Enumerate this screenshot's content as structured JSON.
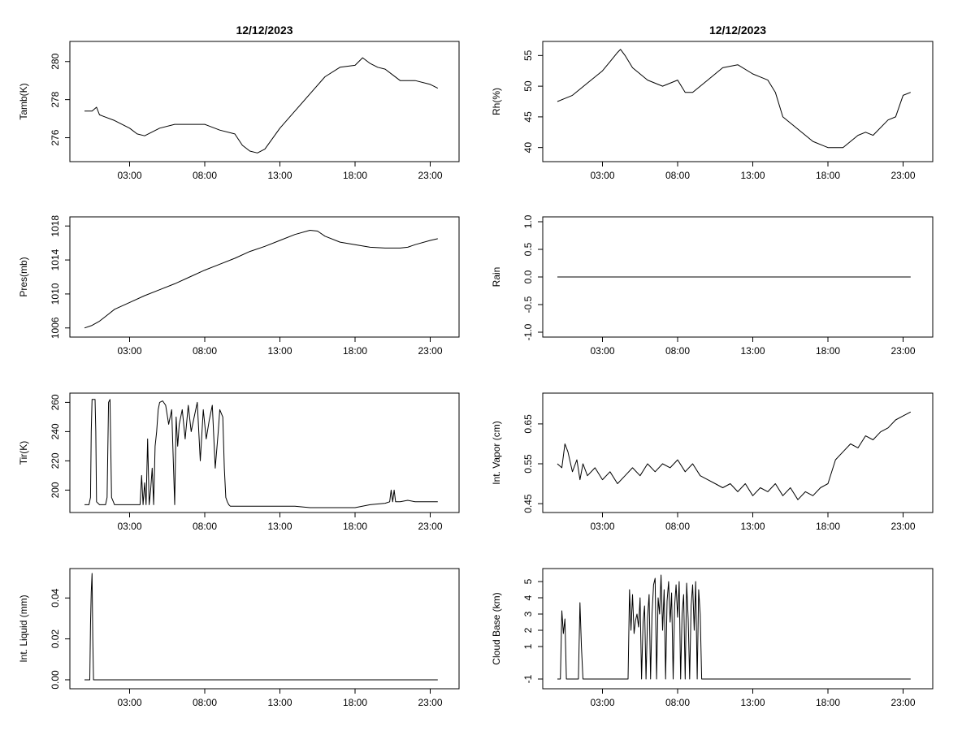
{
  "chart_data": [
    {
      "type": "line",
      "title": "12/12/2023",
      "xlabel": "",
      "ylabel": "Tamb(K)",
      "xticks": [
        "03:00",
        "08:00",
        "13:00",
        "18:00",
        "23:00"
      ],
      "xlim": [
        0,
        24
      ],
      "ylim": [
        275.0,
        280.8
      ],
      "yticks": [
        "276",
        "278",
        "280"
      ],
      "series": [
        {
          "name": "Tamb",
          "x": [
            0.0,
            0.5,
            0.8,
            1.0,
            2.0,
            3.0,
            3.5,
            4.0,
            5.0,
            6.0,
            7.0,
            8.0,
            9.0,
            10.0,
            10.5,
            11.0,
            11.5,
            12.0,
            13.0,
            14.0,
            15.0,
            16.0,
            17.0,
            18.0,
            18.5,
            19.0,
            19.5,
            20.0,
            20.5,
            21.0,
            22.0,
            23.0,
            23.5
          ],
          "y": [
            277.4,
            277.4,
            277.6,
            277.2,
            276.9,
            276.5,
            276.2,
            276.1,
            276.5,
            276.7,
            276.7,
            276.7,
            276.4,
            276.2,
            275.6,
            275.3,
            275.2,
            275.4,
            276.5,
            277.4,
            278.3,
            279.2,
            279.7,
            279.8,
            280.2,
            279.9,
            279.7,
            279.6,
            279.3,
            279.0,
            279.0,
            278.8,
            278.6
          ]
        }
      ]
    },
    {
      "type": "line",
      "title": "12/12/2023",
      "xlabel": "",
      "ylabel": "Rh(%)",
      "xticks": [
        "03:00",
        "08:00",
        "13:00",
        "18:00",
        "23:00"
      ],
      "xlim": [
        0,
        24
      ],
      "ylim": [
        38.5,
        56.5
      ],
      "yticks": [
        "40",
        "45",
        "50",
        "55"
      ],
      "series": [
        {
          "name": "Rh",
          "x": [
            0.0,
            0.5,
            1.0,
            2.0,
            3.0,
            3.5,
            4.0,
            4.2,
            4.5,
            5.0,
            6.0,
            7.0,
            8.0,
            8.5,
            9.0,
            10.0,
            11.0,
            12.0,
            13.0,
            13.5,
            14.0,
            14.5,
            15.0,
            16.0,
            17.0,
            18.0,
            19.0,
            20.0,
            20.5,
            21.0,
            22.0,
            22.5,
            23.0,
            23.5
          ],
          "y": [
            47.5,
            48.0,
            48.5,
            50.5,
            52.5,
            54.0,
            55.5,
            56.0,
            55.0,
            53.0,
            51.0,
            50.0,
            51.0,
            49.0,
            49.0,
            51.0,
            53.0,
            53.5,
            52.0,
            51.5,
            51.0,
            49.0,
            45.0,
            43.0,
            41.0,
            40.0,
            40.0,
            42.0,
            42.5,
            42.0,
            44.5,
            45.0,
            48.5,
            49.0
          ]
        }
      ]
    },
    {
      "type": "line",
      "title": "",
      "xlabel": "",
      "ylabel": "Pres(mb)",
      "xticks": [
        "03:00",
        "08:00",
        "13:00",
        "18:00",
        "23:00"
      ],
      "xlim": [
        0,
        24
      ],
      "ylim": [
        1005.5,
        1018.5
      ],
      "yticks": [
        "1006",
        "1010",
        "1014",
        "1018"
      ],
      "series": [
        {
          "name": "Pres",
          "x": [
            0.0,
            0.5,
            1.0,
            1.5,
            2.0,
            3.0,
            4.0,
            5.0,
            6.0,
            7.0,
            8.0,
            9.0,
            10.0,
            11.0,
            12.0,
            13.0,
            14.0,
            15.0,
            15.5,
            16.0,
            17.0,
            18.0,
            19.0,
            20.0,
            21.0,
            21.5,
            22.0,
            23.0,
            23.5
          ],
          "y": [
            1006.0,
            1006.3,
            1006.8,
            1007.5,
            1008.2,
            1009.0,
            1009.8,
            1010.5,
            1011.2,
            1012.0,
            1012.8,
            1013.5,
            1014.2,
            1015.0,
            1015.6,
            1016.3,
            1017.0,
            1017.5,
            1017.4,
            1016.8,
            1016.1,
            1015.8,
            1015.5,
            1015.4,
            1015.4,
            1015.5,
            1015.8,
            1016.3,
            1016.5
          ]
        }
      ]
    },
    {
      "type": "line",
      "title": "",
      "xlabel": "",
      "ylabel": "Rain",
      "xticks": [
        "03:00",
        "08:00",
        "13:00",
        "18:00",
        "23:00"
      ],
      "xlim": [
        0,
        24
      ],
      "ylim": [
        -1.0,
        1.0
      ],
      "yticks": [
        "-1.0",
        "-0.5",
        "0.0",
        "0.5",
        "1.0"
      ],
      "series": [
        {
          "name": "Rain",
          "x": [
            0.0,
            23.5
          ],
          "y": [
            0,
            0
          ]
        }
      ]
    },
    {
      "type": "line",
      "title": "",
      "xlabel": "",
      "ylabel": "Tir(K)",
      "xticks": [
        "03:00",
        "08:00",
        "13:00",
        "18:00",
        "23:00"
      ],
      "xlim": [
        0,
        24
      ],
      "ylim": [
        188,
        263
      ],
      "yticks": [
        "200",
        "220",
        "240",
        "260"
      ],
      "series": [
        {
          "name": "Tir",
          "x": [
            0.0,
            0.3,
            0.4,
            0.45,
            0.5,
            0.7,
            0.75,
            0.8,
            1.0,
            1.2,
            1.4,
            1.5,
            1.6,
            1.7,
            1.8,
            2.0,
            2.5,
            3.0,
            3.5,
            3.7,
            3.8,
            3.9,
            4.0,
            4.1,
            4.2,
            4.3,
            4.4,
            4.5,
            4.6,
            4.7,
            4.8,
            4.9,
            5.0,
            5.2,
            5.4,
            5.6,
            5.8,
            6.0,
            6.1,
            6.2,
            6.3,
            6.5,
            6.7,
            6.9,
            7.1,
            7.3,
            7.5,
            7.7,
            7.9,
            8.1,
            8.3,
            8.5,
            8.7,
            8.9,
            9.0,
            9.2,
            9.3,
            9.4,
            9.5,
            9.6,
            9.7,
            10.0,
            11.0,
            12.0,
            13.0,
            14.0,
            15.0,
            16.0,
            17.0,
            18.0,
            19.0,
            20.0,
            20.3,
            20.4,
            20.5,
            20.6,
            20.7,
            21.0,
            21.5,
            22.0,
            23.0,
            23.5
          ],
          "y": [
            190,
            190,
            195,
            240,
            262,
            262,
            240,
            192,
            190,
            190,
            190,
            195,
            260,
            262,
            195,
            190,
            190,
            190,
            190,
            190,
            210,
            190,
            205,
            190,
            235,
            190,
            200,
            215,
            190,
            230,
            240,
            255,
            260,
            261,
            258,
            245,
            255,
            190,
            250,
            230,
            245,
            255,
            235,
            258,
            240,
            250,
            260,
            220,
            255,
            235,
            248,
            258,
            215,
            240,
            255,
            250,
            215,
            195,
            192,
            190,
            189,
            189,
            189,
            189,
            189,
            189,
            188,
            188,
            188,
            188,
            190,
            191,
            192,
            200,
            192,
            200,
            192,
            192,
            193,
            192,
            192,
            192
          ]
        }
      ]
    },
    {
      "type": "line",
      "title": "",
      "xlabel": "",
      "ylabel": "Int. Vapor (cm)",
      "xticks": [
        "03:00",
        "08:00",
        "13:00",
        "18:00",
        "23:00"
      ],
      "xlim": [
        0,
        24
      ],
      "ylim": [
        0.44,
        0.715
      ],
      "yticks": [
        "0.45",
        "0.55",
        "0.65"
      ],
      "series": [
        {
          "name": "Int. Vapor",
          "x": [
            0.0,
            0.3,
            0.5,
            0.7,
            1.0,
            1.3,
            1.5,
            1.7,
            2.0,
            2.5,
            3.0,
            3.5,
            4.0,
            4.5,
            5.0,
            5.5,
            6.0,
            6.5,
            7.0,
            7.5,
            8.0,
            8.5,
            9.0,
            9.5,
            10.0,
            10.5,
            11.0,
            11.5,
            12.0,
            12.5,
            13.0,
            13.5,
            14.0,
            14.5,
            15.0,
            15.5,
            16.0,
            16.5,
            17.0,
            17.5,
            18.0,
            18.5,
            19.0,
            19.5,
            20.0,
            20.5,
            21.0,
            21.5,
            22.0,
            22.5,
            23.0,
            23.5
          ],
          "y": [
            0.55,
            0.54,
            0.6,
            0.58,
            0.53,
            0.56,
            0.51,
            0.55,
            0.52,
            0.54,
            0.51,
            0.53,
            0.5,
            0.52,
            0.54,
            0.52,
            0.55,
            0.53,
            0.55,
            0.54,
            0.56,
            0.53,
            0.55,
            0.52,
            0.51,
            0.5,
            0.49,
            0.5,
            0.48,
            0.5,
            0.47,
            0.49,
            0.48,
            0.5,
            0.47,
            0.49,
            0.46,
            0.48,
            0.47,
            0.49,
            0.5,
            0.56,
            0.58,
            0.6,
            0.59,
            0.62,
            0.61,
            0.63,
            0.64,
            0.66,
            0.67,
            0.68
          ]
        }
      ]
    },
    {
      "type": "line",
      "title": "",
      "xlabel": "",
      "ylabel": "Int. Liquid (mm)",
      "xticks": [
        "03:00",
        "08:00",
        "13:00",
        "18:00",
        "23:00"
      ],
      "xlim": [
        0,
        24
      ],
      "ylim": [
        -0.002,
        0.052
      ],
      "yticks": [
        "0.00",
        "0.02",
        "0.04"
      ],
      "series": [
        {
          "name": "Int. Liquid",
          "x": [
            0.0,
            0.35,
            0.4,
            0.45,
            0.5,
            0.55,
            0.6,
            0.65,
            1.0,
            23.5
          ],
          "y": [
            0,
            0,
            0.027,
            0.043,
            0.052,
            0.02,
            0.0,
            0,
            0,
            0
          ]
        }
      ]
    },
    {
      "type": "line",
      "title": "",
      "xlabel": "",
      "ylabel": "Cloud Base (km)",
      "xticks": [
        "03:00",
        "08:00",
        "13:00",
        "18:00",
        "23:00"
      ],
      "xlim": [
        0,
        24
      ],
      "ylim": [
        -1.3,
        5.5
      ],
      "yticks": [
        "-1",
        "1",
        "2",
        "3",
        "4",
        "5"
      ],
      "series": [
        {
          "name": "Cloud Base",
          "x": [
            0.0,
            0.2,
            0.3,
            0.4,
            0.5,
            0.6,
            0.7,
            1.4,
            1.5,
            1.6,
            1.7,
            4.7,
            4.8,
            4.9,
            5.0,
            5.1,
            5.2,
            5.3,
            5.4,
            5.5,
            5.6,
            5.7,
            5.8,
            5.9,
            6.0,
            6.1,
            6.2,
            6.3,
            6.4,
            6.5,
            6.6,
            6.7,
            6.8,
            6.9,
            7.0,
            7.1,
            7.2,
            7.3,
            7.4,
            7.5,
            7.6,
            7.7,
            7.8,
            7.9,
            8.0,
            8.1,
            8.2,
            8.3,
            8.4,
            8.5,
            8.6,
            8.7,
            8.8,
            8.9,
            9.0,
            9.1,
            9.2,
            9.3,
            9.4,
            9.5,
            9.6,
            9.7,
            23.5
          ],
          "y": [
            -1,
            -1,
            3.2,
            1.8,
            2.7,
            -1,
            -1,
            -1,
            3.7,
            1.0,
            -1,
            -1,
            4.5,
            2.0,
            4.2,
            1.8,
            2.6,
            3.0,
            2.2,
            4.0,
            -1,
            2.5,
            3.5,
            -1,
            2.8,
            4.2,
            -1,
            3.0,
            4.8,
            5.2,
            -1,
            4.0,
            3.0,
            5.4,
            2.0,
            4.5,
            -1,
            3.8,
            5.0,
            2.5,
            4.3,
            -1,
            3.5,
            4.8,
            2.8,
            5.0,
            -1,
            3.0,
            4.2,
            -1,
            4.9,
            2.7,
            -1,
            3.5,
            4.8,
            2.0,
            5.0,
            -1,
            4.5,
            3.0,
            -1,
            -1,
            -1
          ]
        }
      ]
    }
  ]
}
